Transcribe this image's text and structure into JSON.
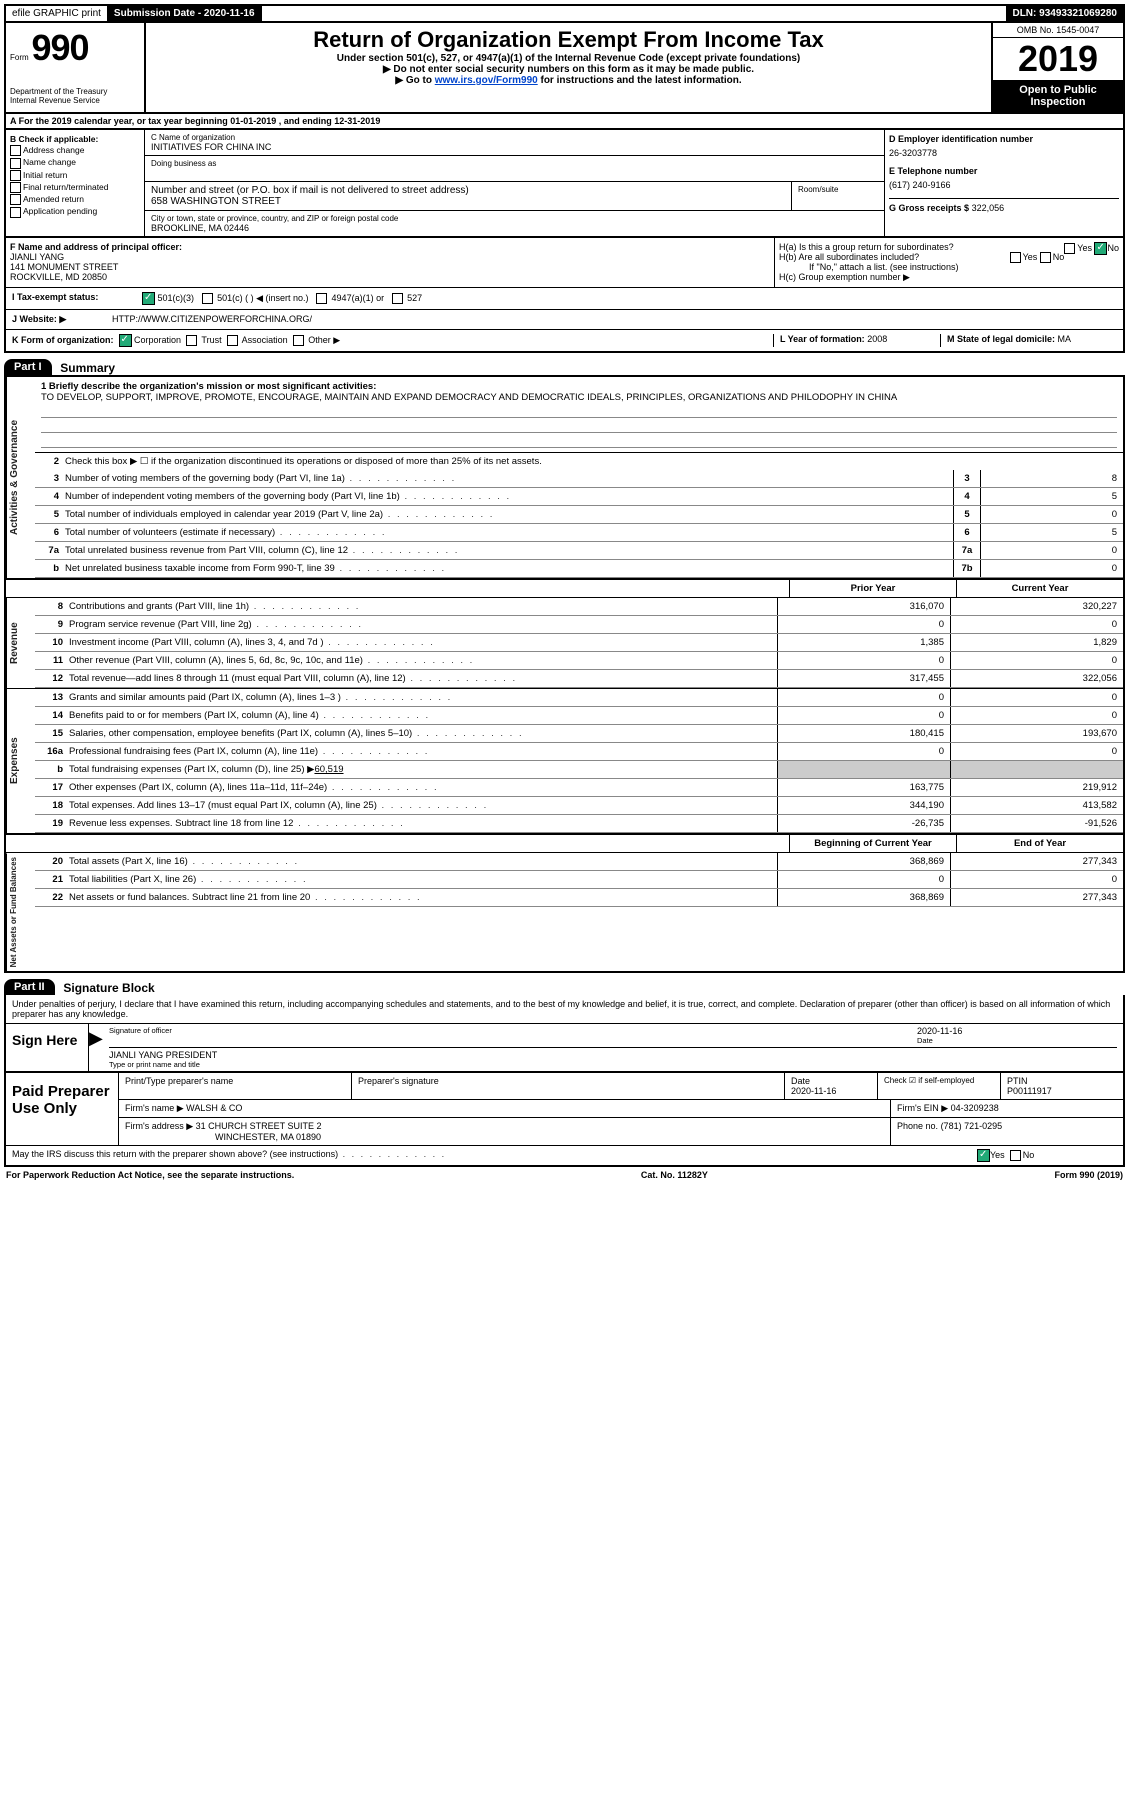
{
  "topbar": {
    "efile": "efile GRAPHIC print",
    "sub_label": "Submission Date - 2020-11-16",
    "dln": "DLN: 93493321069280"
  },
  "header": {
    "form_prefix": "Form",
    "form_number": "990",
    "dept1": "Department of the Treasury",
    "dept2": "Internal Revenue Service",
    "title": "Return of Organization Exempt From Income Tax",
    "subtitle": "Under section 501(c), 527, or 4947(a)(1) of the Internal Revenue Code (except private foundations)",
    "note1": "▶ Do not enter social security numbers on this form as it may be made public.",
    "note2_pre": "▶ Go to ",
    "note2_link": "www.irs.gov/Form990",
    "note2_post": " for instructions and the latest information.",
    "omb": "OMB No. 1545-0047",
    "year": "2019",
    "open": "Open to Public Inspection"
  },
  "row_a": "A For the 2019 calendar year, or tax year beginning 01-01-2019   , and ending 12-31-2019",
  "col_b": {
    "label": "B Check if applicable:",
    "items": [
      "Address change",
      "Name change",
      "Initial return",
      "Final return/terminated",
      "Amended return",
      "Application pending"
    ]
  },
  "col_c": {
    "name_label": "C Name of organization",
    "name": "INITIATIVES FOR CHINA INC",
    "dba_label": "Doing business as",
    "addr_label": "Number and street (or P.O. box if mail is not delivered to street address)",
    "room_label": "Room/suite",
    "addr": "658 WASHINGTON STREET",
    "city_label": "City or town, state or province, country, and ZIP or foreign postal code",
    "city": "BROOKLINE, MA  02446"
  },
  "col_d": {
    "ein_label": "D Employer identification number",
    "ein": "26-3203778",
    "tel_label": "E Telephone number",
    "tel": "(617) 240-9166",
    "gross_label": "G Gross receipts $",
    "gross": "322,056"
  },
  "block_f": {
    "label": "F  Name and address of principal officer:",
    "name": "JIANLI YANG",
    "addr1": "141 MONUMENT STREET",
    "addr2": "ROCKVILLE, MD  20850"
  },
  "block_h": {
    "ha": "H(a)  Is this a group return for subordinates?",
    "hb": "H(b)  Are all subordinates included?",
    "hb_note": "If \"No,\" attach a list. (see instructions)",
    "hc": "H(c)  Group exemption number ▶",
    "yes": "Yes",
    "no": "No"
  },
  "row_i": {
    "label": "I     Tax-exempt status:",
    "opts": [
      "501(c)(3)",
      "501(c) (  ) ◀ (insert no.)",
      "4947(a)(1) or",
      "527"
    ]
  },
  "row_j": {
    "label": "J    Website: ▶",
    "val": "HTTP://WWW.CITIZENPOWERFORCHINA.ORG/"
  },
  "row_k": {
    "label": "K Form of organization:",
    "opts": [
      "Corporation",
      "Trust",
      "Association",
      "Other ▶"
    ],
    "l_label": "L Year of formation:",
    "l_val": "2008",
    "m_label": "M State of legal domicile:",
    "m_val": "MA"
  },
  "part1": {
    "header": "Part I",
    "title": "Summary",
    "q1_label": "1   Briefly describe the organization's mission or most significant activities:",
    "mission": "TO DEVELOP, SUPPORT, IMPROVE, PROMOTE, ENCOURAGE, MAINTAIN AND EXPAND DEMOCRACY AND DEMOCRATIC IDEALS, PRINCIPLES, ORGANIZATIONS AND PHILODOPHY IN CHINA",
    "q2": "Check this box ▶ ☐  if the organization discontinued its operations or disposed of more than 25% of its net assets.",
    "governance_tab": "Activities & Governance",
    "rows_simple": [
      {
        "n": "3",
        "t": "Number of voting members of the governing body (Part VI, line 1a)",
        "box": "3",
        "v": "8"
      },
      {
        "n": "4",
        "t": "Number of independent voting members of the governing body (Part VI, line 1b)",
        "box": "4",
        "v": "5"
      },
      {
        "n": "5",
        "t": "Total number of individuals employed in calendar year 2019 (Part V, line 2a)",
        "box": "5",
        "v": "0"
      },
      {
        "n": "6",
        "t": "Total number of volunteers (estimate if necessary)",
        "box": "6",
        "v": "5"
      },
      {
        "n": "7a",
        "t": "Total unrelated business revenue from Part VIII, column (C), line 12",
        "box": "7a",
        "v": "0"
      },
      {
        "n": "b",
        "t": "Net unrelated business taxable income from Form 990-T, line 39",
        "box": "7b",
        "v": "0"
      }
    ],
    "prior_h": "Prior Year",
    "curr_h": "Current Year",
    "revenue_tab": "Revenue",
    "revenue_rows": [
      {
        "n": "8",
        "t": "Contributions and grants (Part VIII, line 1h)",
        "p": "316,070",
        "c": "320,227"
      },
      {
        "n": "9",
        "t": "Program service revenue (Part VIII, line 2g)",
        "p": "0",
        "c": "0"
      },
      {
        "n": "10",
        "t": "Investment income (Part VIII, column (A), lines 3, 4, and 7d )",
        "p": "1,385",
        "c": "1,829"
      },
      {
        "n": "11",
        "t": "Other revenue (Part VIII, column (A), lines 5, 6d, 8c, 9c, 10c, and 11e)",
        "p": "0",
        "c": "0"
      },
      {
        "n": "12",
        "t": "Total revenue—add lines 8 through 11 (must equal Part VIII, column (A), line 12)",
        "p": "317,455",
        "c": "322,056"
      }
    ],
    "expenses_tab": "Expenses",
    "expense_rows": [
      {
        "n": "13",
        "t": "Grants and similar amounts paid (Part IX, column (A), lines 1–3 )",
        "p": "0",
        "c": "0"
      },
      {
        "n": "14",
        "t": "Benefits paid to or for members (Part IX, column (A), line 4)",
        "p": "0",
        "c": "0"
      },
      {
        "n": "15",
        "t": "Salaries, other compensation, employee benefits (Part IX, column (A), lines 5–10)",
        "p": "180,415",
        "c": "193,670"
      },
      {
        "n": "16a",
        "t": "Professional fundraising fees (Part IX, column (A), line 11e)",
        "p": "0",
        "c": "0"
      }
    ],
    "row16b": {
      "n": "b",
      "t": "Total fundraising expenses (Part IX, column (D), line 25) ▶",
      "v": "60,519"
    },
    "expense_rows2": [
      {
        "n": "17",
        "t": "Other expenses (Part IX, column (A), lines 11a–11d, 11f–24e)",
        "p": "163,775",
        "c": "219,912"
      },
      {
        "n": "18",
        "t": "Total expenses. Add lines 13–17 (must equal Part IX, column (A), line 25)",
        "p": "344,190",
        "c": "413,582"
      },
      {
        "n": "19",
        "t": "Revenue less expenses. Subtract line 18 from line 12",
        "p": "-26,735",
        "c": "-91,526"
      }
    ],
    "net_tab": "Net Assets or Fund Balances",
    "beg_h": "Beginning of Current Year",
    "end_h": "End of Year",
    "net_rows": [
      {
        "n": "20",
        "t": "Total assets (Part X, line 16)",
        "p": "368,869",
        "c": "277,343"
      },
      {
        "n": "21",
        "t": "Total liabilities (Part X, line 26)",
        "p": "0",
        "c": "0"
      },
      {
        "n": "22",
        "t": "Net assets or fund balances. Subtract line 21 from line 20",
        "p": "368,869",
        "c": "277,343"
      }
    ]
  },
  "part2": {
    "header": "Part II",
    "title": "Signature Block",
    "penalty": "Under penalties of perjury, I declare that I have examined this return, including accompanying schedules and statements, and to the best of my knowledge and belief, it is true, correct, and complete. Declaration of preparer (other than officer) is based on all information of which preparer has any knowledge.",
    "sign_here": "Sign Here",
    "sig_officer": "Signature of officer",
    "date_lbl": "Date",
    "date_val": "2020-11-16",
    "name_title": "JIANLI YANG  PRESIDENT",
    "name_title_lbl": "Type or print name and title"
  },
  "prep": {
    "left": "Paid Preparer Use Only",
    "h1": "Print/Type preparer's name",
    "h2": "Preparer's signature",
    "h3": "Date",
    "date": "2020-11-16",
    "check_lbl": "Check ☑ if self-employed",
    "ptin_lbl": "PTIN",
    "ptin": "P00111917",
    "firm_name_lbl": "Firm's name    ▶",
    "firm_name": "WALSH & CO",
    "firm_ein_lbl": "Firm's EIN ▶",
    "firm_ein": "04-3209238",
    "firm_addr_lbl": "Firm's address ▶",
    "firm_addr1": "31 CHURCH STREET SUITE 2",
    "firm_addr2": "WINCHESTER, MA  01890",
    "phone_lbl": "Phone no.",
    "phone": "(781) 721-0295"
  },
  "footer": {
    "discuss": "May the IRS discuss this return with the preparer shown above? (see instructions)",
    "yes": "Yes",
    "no": "No",
    "paperwork": "For Paperwork Reduction Act Notice, see the separate instructions.",
    "cat": "Cat. No. 11282Y",
    "form": "Form 990 (2019)"
  }
}
